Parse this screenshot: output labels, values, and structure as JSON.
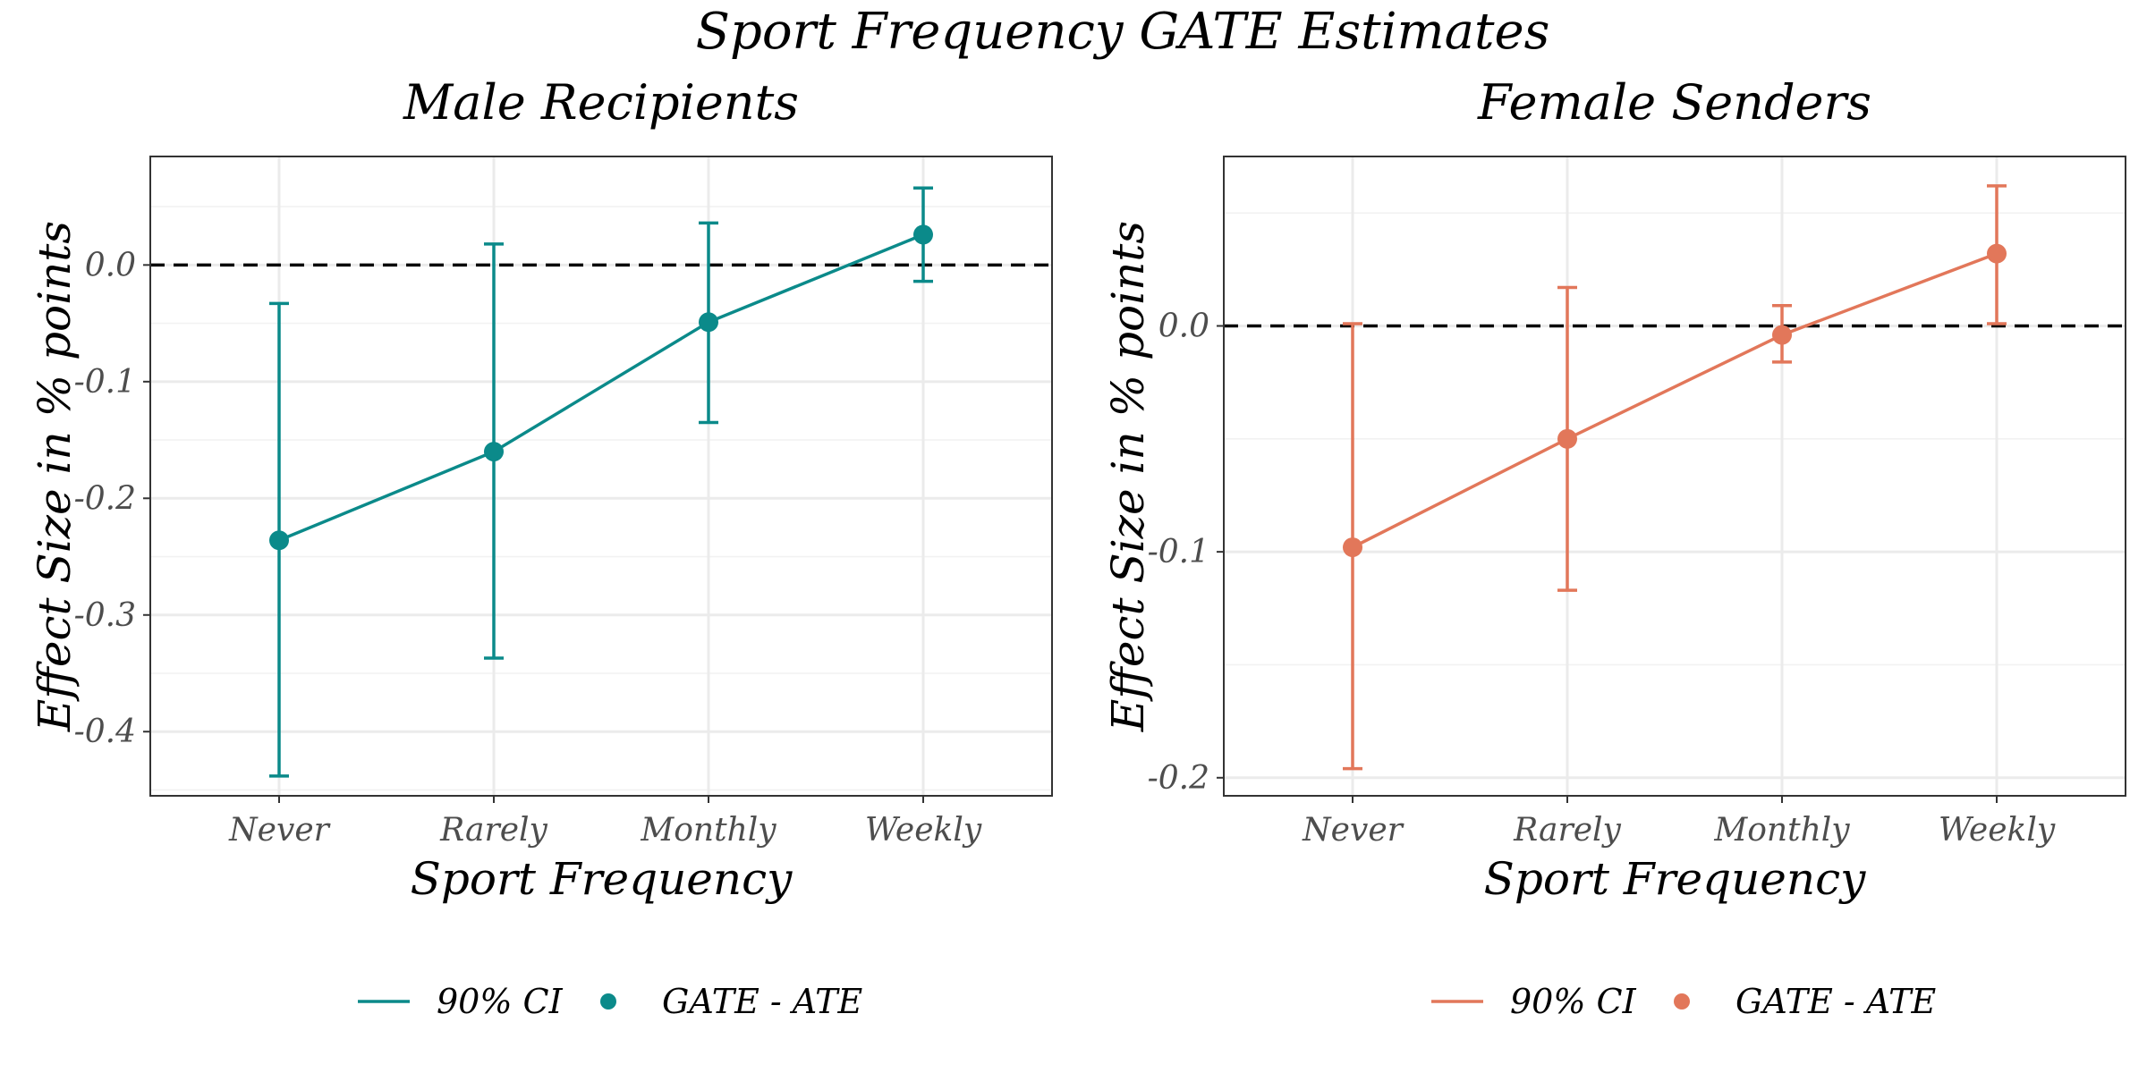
{
  "figure_title": "Sport Frequency GATE Estimates",
  "chart_data": [
    {
      "type": "line",
      "title": "Male Recipients",
      "xlabel": "Sport Frequency",
      "ylabel": "Effect Size in % points",
      "categories": [
        "Never",
        "Rarely",
        "Monthly",
        "Weekly"
      ],
      "values": [
        -0.236,
        -0.16,
        -0.049,
        0.026
      ],
      "ci_lower": [
        -0.438,
        -0.337,
        -0.135,
        -0.014
      ],
      "ci_upper": [
        -0.033,
        0.018,
        0.036,
        0.066
      ],
      "ylim": [
        -0.455,
        0.093
      ],
      "yticks": [
        0.0,
        -0.1,
        -0.2,
        -0.3,
        -0.4
      ],
      "ytick_labels": [
        "0.0",
        "-0.1",
        "-0.2",
        "-0.3",
        "-0.4"
      ],
      "reference_line": 0,
      "color": "#0b8a8a",
      "legend": {
        "position": "bottom",
        "ci_label": "90% CI",
        "point_label": "GATE - ATE"
      }
    },
    {
      "type": "line",
      "title": "Female Senders",
      "xlabel": "Sport Frequency",
      "ylabel": "Effect Size in % points",
      "categories": [
        "Never",
        "Rarely",
        "Monthly",
        "Weekly"
      ],
      "values": [
        -0.098,
        -0.05,
        -0.004,
        0.032
      ],
      "ci_lower": [
        -0.196,
        -0.117,
        -0.016,
        0.001
      ],
      "ci_upper": [
        0.001,
        0.017,
        0.009,
        0.062
      ],
      "ylim": [
        -0.208,
        0.075
      ],
      "yticks": [
        0.0,
        -0.1,
        -0.2
      ],
      "ytick_labels": [
        "0.0",
        "-0.1",
        "-0.2"
      ],
      "reference_line": 0,
      "color": "#e2775a",
      "legend": {
        "position": "bottom",
        "ci_label": "90% CI",
        "point_label": "GATE - ATE"
      }
    }
  ]
}
